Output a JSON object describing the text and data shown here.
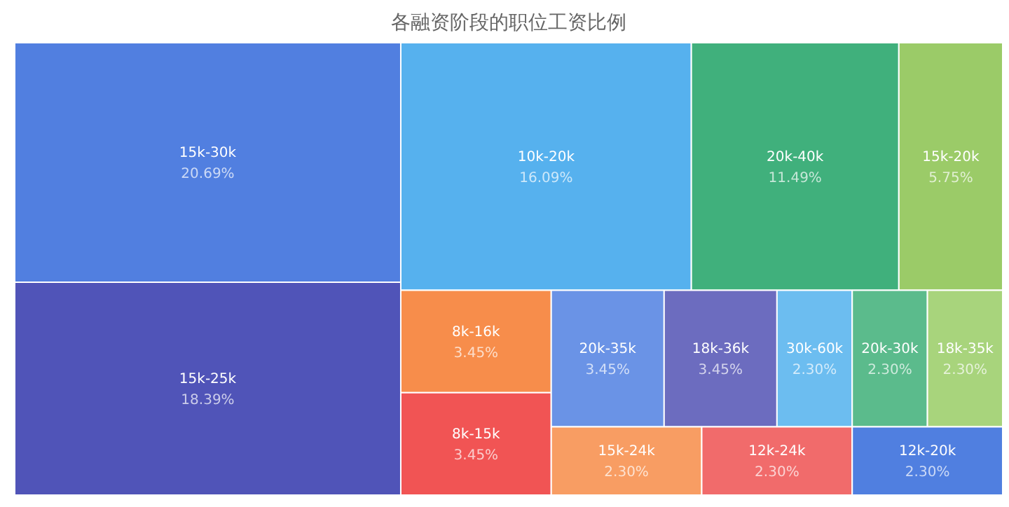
{
  "chart_data": {
    "type": "other",
    "title": "各融资阶段的职位工资比例",
    "categories": [
      "15k-30k",
      "15k-25k",
      "10k-20k",
      "20k-40k",
      "15k-20k",
      "8k-16k",
      "8k-15k",
      "20k-35k",
      "18k-36k",
      "30k-60k",
      "20k-30k",
      "18k-35k",
      "15k-24k",
      "12k-24k",
      "12k-20k"
    ],
    "values": [
      20.69,
      18.39,
      16.09,
      11.49,
      5.75,
      3.45,
      3.45,
      3.45,
      3.45,
      2.3,
      2.3,
      2.3,
      2.3,
      2.3,
      2.3
    ],
    "value_labels": [
      "20.69%",
      "18.39%",
      "16.09%",
      "11.49%",
      "5.75%",
      "3.45%",
      "3.45%",
      "3.45%",
      "3.45%",
      "2.30%",
      "2.30%",
      "2.30%",
      "2.30%",
      "2.30%",
      "2.30%"
    ],
    "colors": [
      "#517fe0",
      "#5054b8",
      "#56b1ee",
      "#40b07c",
      "#9bcb68",
      "#f78d4b",
      "#f15454",
      "#6a93e6",
      "#6c6cbf",
      "#6cbdf0",
      "#5bbb8c",
      "#a8d47c",
      "#f89d63",
      "#f16b6b",
      "#507fe0"
    ]
  }
}
